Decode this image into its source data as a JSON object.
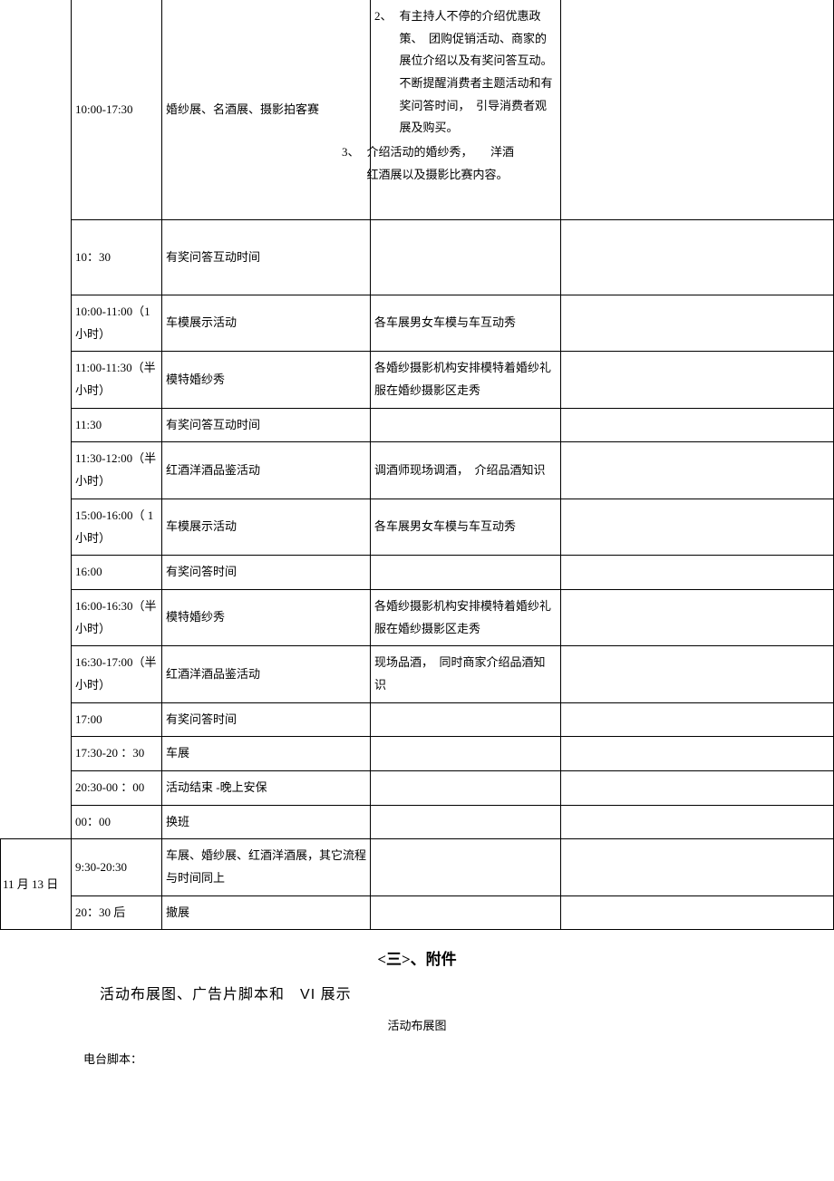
{
  "table": {
    "rows": [
      {
        "time": "10:00-17:30",
        "activity": "婚纱展、名酒展、摄影拍客赛",
        "desc_items": [
          {
            "num": "2、",
            "text": "有主持人不停的介绍优惠政策、　团购促销活动、商家的展位介绍以及有奖问答互动。　不断提醒消费者主题活动和有奖问答时间，　引导消费者观展及购买。"
          },
          {
            "num": "3、",
            "text": "介绍活动的婚纱秀，　　洋酒红酒展以及摄影比赛内容。"
          }
        ],
        "remark": ""
      },
      {
        "time": "10：30",
        "activity": "有奖问答互动时间",
        "desc": "",
        "remark": ""
      },
      {
        "time": "10:00-11:00（1 小时）",
        "activity": "车模展示活动",
        "desc": "各车展男女车模与车互动秀",
        "remark": ""
      },
      {
        "time": "11:00-11:30（半小时）",
        "activity": "模特婚纱秀",
        "desc": "各婚纱摄影机构安排模特着婚纱礼服在婚纱摄影区走秀",
        "remark": ""
      },
      {
        "time": "11:30",
        "activity": "有奖问答互动时间",
        "desc": "",
        "remark": ""
      },
      {
        "time": "11:30-12:00（半小时）",
        "activity": "红酒洋酒品鉴活动",
        "desc": "调酒师现场调酒，　介绍品酒知识",
        "remark": ""
      },
      {
        "time": "15:00-16:00（ 1小时）",
        "activity": "车模展示活动",
        "desc": "各车展男女车模与车互动秀",
        "remark": ""
      },
      {
        "time": "16:00",
        "activity": "有奖问答时间",
        "desc": "",
        "remark": ""
      },
      {
        "time": "16:00-16:30（半小时）",
        "activity": "模特婚纱秀",
        "desc": "各婚纱摄影机构安排模特着婚纱礼服在婚纱摄影区走秀",
        "remark": ""
      },
      {
        "time": "16:30-17:00（半小时）",
        "activity": "红酒洋酒品鉴活动",
        "desc": "现场品酒，　同时商家介绍品酒知识",
        "remark": ""
      },
      {
        "time": "17:00",
        "activity": "有奖问答时间",
        "desc": "",
        "remark": ""
      },
      {
        "time": "17:30-20 ：30",
        "activity": "车展",
        "desc": "",
        "remark": ""
      },
      {
        "time": "20:30-00 ：00",
        "activity": "活动结束  -晚上安保",
        "desc": "",
        "remark": ""
      },
      {
        "time": "00：00",
        "activity": "换班",
        "desc": "",
        "remark": ""
      }
    ],
    "day2": {
      "date": "11 月 13 日",
      "rows": [
        {
          "time": "9:30-20:30",
          "activity": "车展、婚纱展、红酒洋酒展，其它流程与时间同上",
          "desc": "",
          "remark": ""
        },
        {
          "time": "20：30 后",
          "activity": "撤展",
          "desc": "",
          "remark": ""
        }
      ]
    }
  },
  "headings": {
    "section": "<三>、附件",
    "sub": "活动布展图、广告片脚本和　",
    "sub_vi": "VI 展示",
    "center_small": "活动布展图",
    "radio_label": "电台脚本："
  }
}
